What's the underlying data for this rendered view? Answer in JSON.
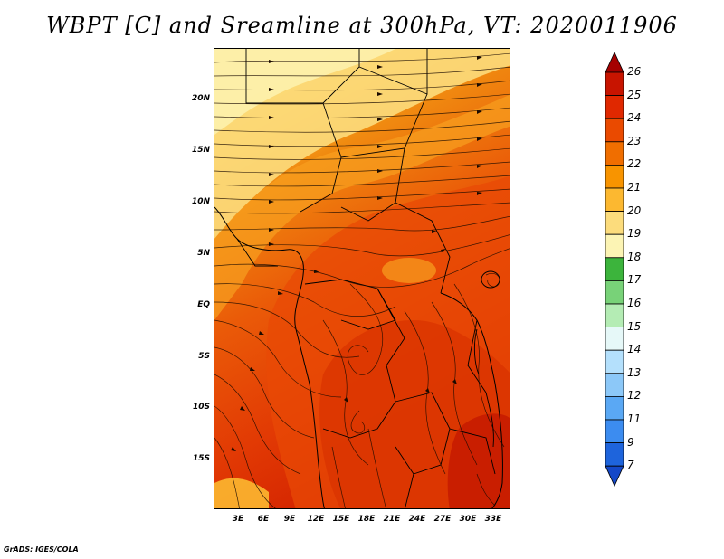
{
  "title": "WBPT [C] and Sreamline at 300hPa, VT: 2020011906",
  "footer": "GrADS: IGES/COLA",
  "lat_labels": [
    "20N",
    "15N",
    "10N",
    "5N",
    "EQ",
    "5S",
    "10S",
    "15S"
  ],
  "lon_labels": [
    "3E",
    "6E",
    "9E",
    "12E",
    "15E",
    "18E",
    "21E",
    "24E",
    "27E",
    "30E",
    "33E"
  ],
  "colorbar": {
    "labels": [
      "26",
      "25",
      "24",
      "23",
      "22",
      "21",
      "20",
      "19",
      "18",
      "17",
      "16",
      "15",
      "14",
      "13",
      "12",
      "11",
      "9",
      "7"
    ],
    "colors": [
      "#a50000",
      "#c81400",
      "#e02800",
      "#ea4a00",
      "#f06e00",
      "#f89400",
      "#fcb830",
      "#fcdc7c",
      "#fcf4b4",
      "#3cb43c",
      "#78d278",
      "#b4ecb4",
      "#e6f8f8",
      "#b4e0fc",
      "#8cc8f8",
      "#5aa8f4",
      "#3c8cf0",
      "#1e64dc",
      "#1448c8"
    ]
  },
  "map": {
    "variable": "WBPT [C]",
    "level": "300hPa",
    "valid_time": "2020011906"
  }
}
